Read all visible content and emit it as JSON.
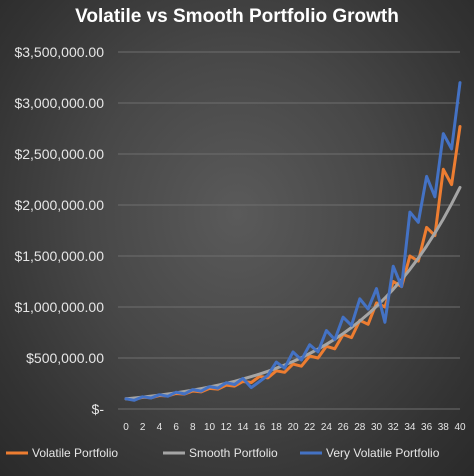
{
  "chart_data": {
    "type": "line",
    "title": "Volatile vs Smooth Portfolio Growth",
    "xlabel": "",
    "ylabel": "",
    "x": [
      0,
      1,
      2,
      3,
      4,
      5,
      6,
      7,
      8,
      9,
      10,
      11,
      12,
      13,
      14,
      15,
      16,
      17,
      18,
      19,
      20,
      21,
      22,
      23,
      24,
      25,
      26,
      27,
      28,
      29,
      30,
      31,
      32,
      33,
      34,
      35,
      36,
      37,
      38,
      39,
      40
    ],
    "x_tick_labels": [
      "0",
      "2",
      "4",
      "6",
      "8",
      "10",
      "12",
      "14",
      "16",
      "18",
      "20",
      "22",
      "24",
      "26",
      "28",
      "30",
      "32",
      "34",
      "36",
      "38",
      "40"
    ],
    "y_tick_labels": [
      "$-",
      "$500,000.00",
      "$1,000,000.00",
      "$1,500,000.00",
      "$2,000,000.00",
      "$2,500,000.00",
      "$3,000,000.00",
      "$3,500,000.00"
    ],
    "ylim": [
      0,
      3500000
    ],
    "grid": true,
    "legend_position": "bottom",
    "series": [
      {
        "name": "Volatile Portfolio",
        "color": "#ed7d31",
        "values": [
          100000,
          94000,
          115000,
          110000,
          132000,
          127000,
          152000,
          146000,
          176000,
          168000,
          202000,
          195000,
          234000,
          225000,
          270000,
          260000,
          320000,
          305000,
          375000,
          360000,
          440000,
          420000,
          520000,
          500000,
          615000,
          590000,
          730000,
          700000,
          870000,
          830000,
          1040000,
          1000000,
          1250000,
          1200000,
          1500000,
          1450000,
          1780000,
          1700000,
          2350000,
          2200000,
          2770000
        ]
      },
      {
        "name": "Smooth Portfolio",
        "color": "#a5a5a5",
        "values": [
          100000,
          108000,
          116600,
          126000,
          136000,
          147000,
          158700,
          171400,
          185100,
          199900,
          215900,
          233200,
          251800,
          272000,
          293700,
          317200,
          342600,
          370000,
          399600,
          431600,
          466100,
          503400,
          543700,
          587200,
          634100,
          684900,
          739600,
          798800,
          862700,
          931700,
          1006300,
          1086800,
          1173700,
          1267600,
          1369000,
          1478500,
          1596800,
          1724500,
          1862500,
          2011500,
          2172500
        ]
      },
      {
        "name": "Very Volatile Portfolio",
        "color": "#4472c4",
        "values": [
          100000,
          85000,
          120000,
          108000,
          140000,
          125000,
          165000,
          148000,
          190000,
          175000,
          220000,
          205000,
          258000,
          240000,
          300000,
          210000,
          270000,
          330000,
          460000,
          400000,
          560000,
          480000,
          630000,
          560000,
          770000,
          680000,
          900000,
          820000,
          1080000,
          980000,
          1180000,
          850000,
          1400000,
          1200000,
          1930000,
          1830000,
          2280000,
          2080000,
          2700000,
          2550000,
          3200000
        ]
      }
    ]
  }
}
